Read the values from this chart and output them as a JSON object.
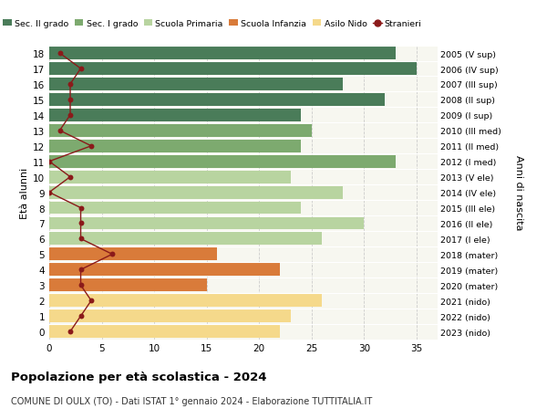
{
  "ages": [
    18,
    17,
    16,
    15,
    14,
    13,
    12,
    11,
    10,
    9,
    8,
    7,
    6,
    5,
    4,
    3,
    2,
    1,
    0
  ],
  "years": [
    "2005 (V sup)",
    "2006 (IV sup)",
    "2007 (III sup)",
    "2008 (II sup)",
    "2009 (I sup)",
    "2010 (III med)",
    "2011 (II med)",
    "2012 (I med)",
    "2013 (V ele)",
    "2014 (IV ele)",
    "2015 (III ele)",
    "2016 (II ele)",
    "2017 (I ele)",
    "2018 (mater)",
    "2019 (mater)",
    "2020 (mater)",
    "2021 (nido)",
    "2022 (nido)",
    "2023 (nido)"
  ],
  "bar_values": [
    33,
    35,
    28,
    32,
    24,
    25,
    24,
    33,
    23,
    28,
    24,
    30,
    26,
    16,
    22,
    15,
    26,
    23,
    22
  ],
  "stranieri": [
    1,
    3,
    2,
    2,
    2,
    1,
    4,
    0,
    2,
    0,
    3,
    3,
    3,
    6,
    3,
    3,
    4,
    3,
    2
  ],
  "bar_colors": [
    "#4a7c59",
    "#4a7c59",
    "#4a7c59",
    "#4a7c59",
    "#4a7c59",
    "#7daa6f",
    "#7daa6f",
    "#7daa6f",
    "#b8d4a0",
    "#b8d4a0",
    "#b8d4a0",
    "#b8d4a0",
    "#b8d4a0",
    "#d97b3a",
    "#d97b3a",
    "#d97b3a",
    "#f5d98b",
    "#f5d98b",
    "#f5d98b"
  ],
  "legend_labels": [
    "Sec. II grado",
    "Sec. I grado",
    "Scuola Primaria",
    "Scuola Infanzia",
    "Asilo Nido",
    "Stranieri"
  ],
  "legend_colors": [
    "#4a7c59",
    "#7daa6f",
    "#b8d4a0",
    "#d97b3a",
    "#f5d98b",
    "#8b1a1a"
  ],
  "stranieri_color": "#8b1a1a",
  "title": "Popolazione per età scolastica - 2024",
  "subtitle": "COMUNE DI OULX (TO) - Dati ISTAT 1° gennaio 2024 - Elaborazione TUTTITALIA.IT",
  "ylabel_left": "Età alunni",
  "ylabel_right": "Anni di nascita",
  "xlim": [
    0,
    37
  ],
  "bg_color": "#ffffff",
  "plot_bg": "#f7f7f0"
}
